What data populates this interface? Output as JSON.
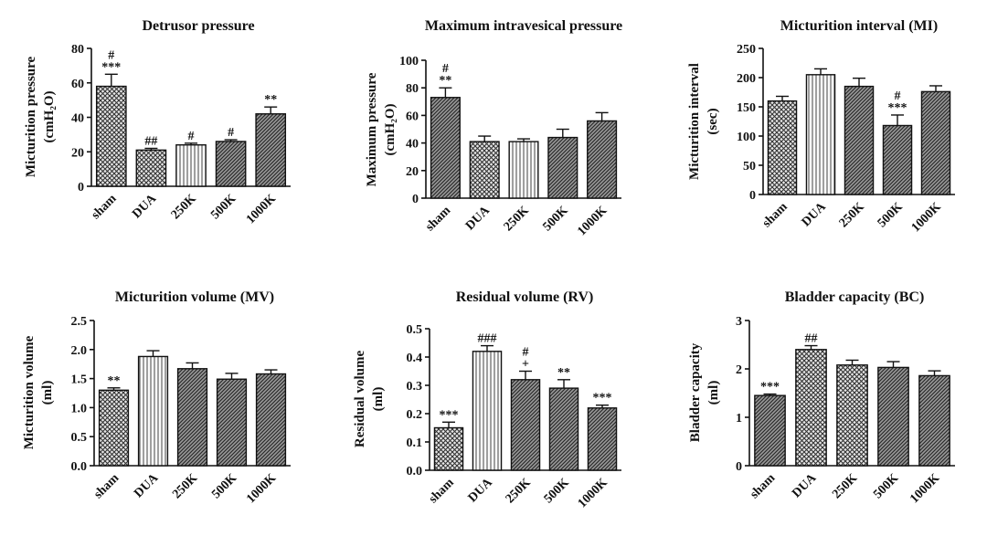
{
  "figure": {
    "categories": [
      "sham",
      "DUA",
      "250K",
      "500K",
      "1000K"
    ]
  },
  "chart_data": [
    {
      "type": "bar",
      "title": "Detrusor pressure",
      "ylabel": "Micturition pressure",
      "yunit": "(cmH₂O)",
      "categories": [
        "sham",
        "DUA",
        "250K",
        "500K",
        "1000K"
      ],
      "values": [
        58,
        21,
        24,
        26,
        42
      ],
      "errors": [
        7,
        1,
        1,
        1,
        4
      ],
      "labels": [
        "#\n***",
        "##",
        "#",
        "#",
        "**"
      ],
      "ylim": [
        0,
        80
      ],
      "yticks": [
        "0",
        "20",
        "40",
        "60",
        "80"
      ],
      "patterns": [
        "cross",
        "cross",
        "vert",
        "diag",
        "diag"
      ]
    },
    {
      "type": "bar",
      "title": "Maximum intravesical pressure",
      "ylabel": "Maximum pressure",
      "yunit": "(cmH₂O)",
      "categories": [
        "sham",
        "DUA",
        "250K",
        "500K",
        "1000K"
      ],
      "values": [
        73,
        41,
        41,
        44,
        56
      ],
      "errors": [
        7,
        4,
        2,
        6,
        6
      ],
      "labels": [
        "#\n**",
        "",
        "",
        "",
        ""
      ],
      "ylim": [
        0,
        100
      ],
      "yticks": [
        "0",
        "20",
        "40",
        "60",
        "80",
        "100"
      ],
      "patterns": [
        "diag",
        "cross",
        "vert",
        "diag",
        "diag"
      ]
    },
    {
      "type": "bar",
      "title": "Micturition interval (MI)",
      "ylabel": "Micturition interval",
      "yunit": "(sec)",
      "categories": [
        "sham",
        "DUA",
        "250K",
        "500K",
        "1000K"
      ],
      "values": [
        160,
        205,
        185,
        118,
        176
      ],
      "errors": [
        8,
        10,
        14,
        18,
        10
      ],
      "labels": [
        "",
        "",
        "",
        "#\n***",
        ""
      ],
      "ylim": [
        0,
        250
      ],
      "yticks": [
        "0",
        "50",
        "100",
        "150",
        "200",
        "250"
      ],
      "patterns": [
        "cross",
        "vert",
        "diag",
        "diag",
        "diag"
      ]
    },
    {
      "type": "bar",
      "title": "Micturition volume (MV)",
      "ylabel": "Micturition volume",
      "yunit": "(ml)",
      "categories": [
        "sham",
        "DUA",
        "250K",
        "500K",
        "1000K"
      ],
      "values": [
        1.3,
        1.88,
        1.67,
        1.49,
        1.58
      ],
      "errors": [
        0.04,
        0.1,
        0.1,
        0.1,
        0.07
      ],
      "labels": [
        "**",
        "",
        "",
        "",
        ""
      ],
      "ylim": [
        0,
        2.5
      ],
      "yticks": [
        "0.0",
        "0.5",
        "1.0",
        "1.5",
        "2.0",
        "2.5"
      ],
      "patterns": [
        "cross",
        "vert",
        "diag",
        "diag",
        "diag"
      ]
    },
    {
      "type": "bar",
      "title": "Residual volume (RV)",
      "ylabel": "Residual volume",
      "yunit": "(ml)",
      "categories": [
        "sham",
        "DUA",
        "250K",
        "500K",
        "1000K"
      ],
      "values": [
        0.15,
        0.42,
        0.32,
        0.29,
        0.22
      ],
      "errors": [
        0.02,
        0.02,
        0.03,
        0.03,
        0.01
      ],
      "labels": [
        "***",
        "###",
        "#\n+",
        "**",
        "***"
      ],
      "ylim": [
        0,
        0.5
      ],
      "yticks": [
        "0.0",
        "0.1",
        "0.2",
        "0.3",
        "0.4",
        "0.5"
      ],
      "patterns": [
        "cross",
        "vert",
        "diag",
        "diag",
        "diag"
      ]
    },
    {
      "type": "bar",
      "title": "Bladder capacity (BC)",
      "ylabel": "Bladder capacity",
      "yunit": "(ml)",
      "categories": [
        "sham",
        "DUA",
        "250K",
        "500K",
        "1000K"
      ],
      "values": [
        1.45,
        2.4,
        2.08,
        2.03,
        1.86
      ],
      "errors": [
        0.03,
        0.08,
        0.1,
        0.12,
        0.1
      ],
      "labels": [
        "***",
        "##",
        "",
        "",
        ""
      ],
      "ylim": [
        0,
        3
      ],
      "yticks": [
        "0",
        "1",
        "2",
        "3"
      ],
      "patterns": [
        "diag",
        "cross",
        "cross",
        "diag",
        "diag"
      ]
    }
  ]
}
